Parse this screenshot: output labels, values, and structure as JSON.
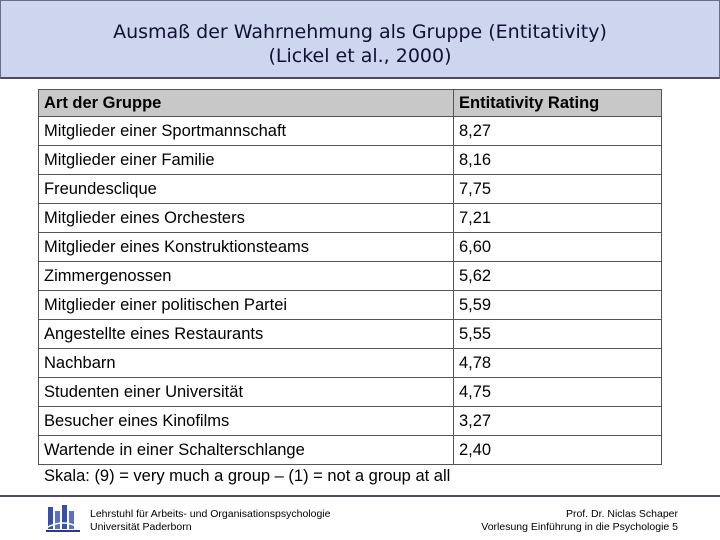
{
  "title": {
    "line1": "Ausmaß der Wahrnehmung als Gruppe (Entitativity)",
    "line2": "(Lickel et al., 2000)"
  },
  "table": {
    "headers": [
      "Art der Gruppe",
      "Entitativity Rating"
    ],
    "rows": [
      [
        "Mitglieder einer Sportmannschaft",
        "8,27"
      ],
      [
        "Mitglieder einer Familie",
        "8,16"
      ],
      [
        "Freundesclique",
        "7,75"
      ],
      [
        "Mitglieder eines Orchesters",
        "7,21"
      ],
      [
        "Mitglieder eines Konstruktionsteams",
        "6,60"
      ],
      [
        "Zimmergenossen",
        "5,62"
      ],
      [
        "Mitglieder einer politischen Partei",
        "5,59"
      ],
      [
        "Angestellte eines Restaurants",
        "5,55"
      ],
      [
        "Nachbarn",
        "4,78"
      ],
      [
        "Studenten einer Universität",
        "4,75"
      ],
      [
        "Besucher eines Kinofilms",
        "3,27"
      ],
      [
        "Wartende in einer Schalterschlange",
        "2,40"
      ]
    ]
  },
  "scale_note": "Skala: (9) = very much a group – (1) = not a group at all",
  "footer": {
    "left_line1": "Lehrstuhl für Arbeits- und Organisationspsychologie",
    "left_line2": "Universität Paderborn",
    "right_line1": "Prof. Dr. Niclas Schaper",
    "right_line2": "Vorlesung Einführung in die Psychologie 5"
  },
  "colors": {
    "title_bg": "#cdd5ef",
    "header_bg": "#c8c8c8",
    "logo_blue": "#3a4fa8"
  },
  "icons": {
    "logo": "university-logo-icon"
  }
}
